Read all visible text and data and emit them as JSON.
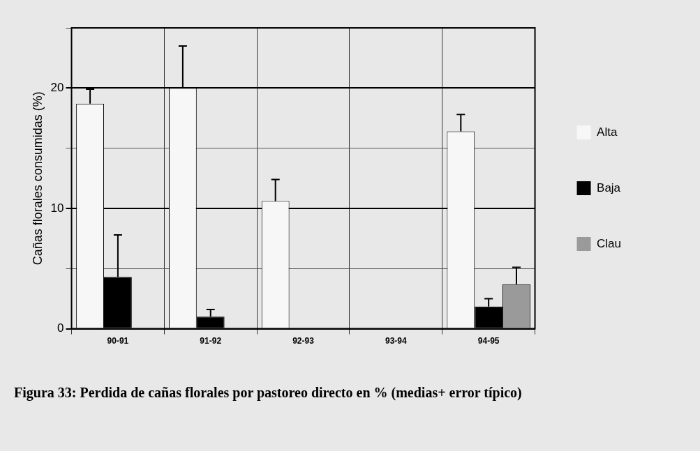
{
  "chart_data": {
    "type": "bar",
    "ylabel": "Cañas florales consumidas (%)",
    "categories": [
      "90-91",
      "91-92",
      "92-93",
      "93-94",
      "94-95"
    ],
    "series": [
      {
        "name": "Alta",
        "color": "#f7f7f7",
        "values": [
          18.7,
          20,
          10.6,
          null,
          16.4
        ],
        "errors": [
          [
            18.7,
            19.9
          ],
          [
            20,
            23.5
          ],
          [
            10.6,
            12.4
          ],
          null,
          [
            16.4,
            17.8
          ]
        ]
      },
      {
        "name": "Baja",
        "color": "#000000",
        "values": [
          4.3,
          1.0,
          null,
          null,
          1.85
        ],
        "errors": [
          [
            4.3,
            7.8
          ],
          [
            1.0,
            1.6
          ],
          null,
          null,
          [
            1.85,
            2.5
          ]
        ]
      },
      {
        "name": "Clau",
        "color": "#9a9a9a",
        "values": [
          null,
          null,
          null,
          null,
          3.7
        ],
        "errors": [
          null,
          null,
          null,
          null,
          [
            3.7,
            5.1
          ]
        ]
      }
    ],
    "ylim": [
      0,
      25
    ],
    "yticks": [
      0,
      {
        "value": 5,
        "label": null
      },
      10,
      {
        "value": 15,
        "label": null
      },
      20,
      {
        "value": 25,
        "label": null
      }
    ],
    "grid": true,
    "legend": "right",
    "annotations": [
      "Figura 33: Perdida de cañas florales por pastoreo directo en % (medias+ error típico)"
    ]
  }
}
